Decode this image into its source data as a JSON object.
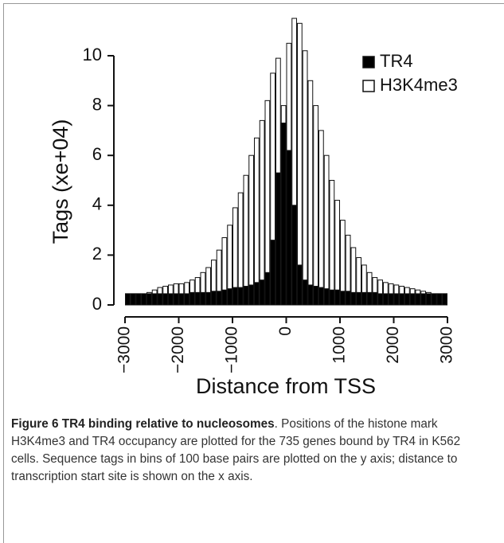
{
  "chart_data": {
    "type": "histogram",
    "y_label": "Tags (xe+04)",
    "x_label": "Distance from TSS",
    "bins": [
      -3000,
      -2900,
      -2800,
      -2700,
      -2600,
      -2500,
      -2400,
      -2300,
      -2200,
      -2100,
      -2000,
      -1900,
      -1800,
      -1700,
      -1600,
      -1500,
      -1400,
      -1300,
      -1200,
      -1100,
      -1000,
      -900,
      -800,
      -700,
      -600,
      -500,
      -400,
      -300,
      -200,
      -100,
      0,
      100,
      200,
      300,
      400,
      500,
      600,
      700,
      800,
      900,
      1000,
      1100,
      1200,
      1300,
      1400,
      1500,
      1600,
      1700,
      1800,
      1900,
      2000,
      2100,
      2200,
      2300,
      2400,
      2500,
      2600,
      2700,
      2800,
      2900,
      3000
    ],
    "series": [
      {
        "name": "H3K4me3",
        "color": "#ffffff",
        "values": [
          0.45,
          0.45,
          0.45,
          0.45,
          0.5,
          0.6,
          0.7,
          0.75,
          0.8,
          0.85,
          0.85,
          0.9,
          1.0,
          1.1,
          1.3,
          1.5,
          1.8,
          2.2,
          2.7,
          3.2,
          3.9,
          4.5,
          5.2,
          6.0,
          6.7,
          7.4,
          8.2,
          9.3,
          9.9,
          8.0,
          10.5,
          11.5,
          11.3,
          10.2,
          9.0,
          8.0,
          7.0,
          6.0,
          5.0,
          4.2,
          3.4,
          2.8,
          2.3,
          1.9,
          1.6,
          1.3,
          1.1,
          1.0,
          0.9,
          0.85,
          0.8,
          0.75,
          0.7,
          0.65,
          0.6,
          0.55,
          0.5,
          0.45,
          0.45,
          0.45
        ]
      },
      {
        "name": "TR4",
        "color": "#000000",
        "values": [
          0.45,
          0.45,
          0.45,
          0.45,
          0.45,
          0.45,
          0.45,
          0.45,
          0.45,
          0.45,
          0.45,
          0.45,
          0.5,
          0.5,
          0.5,
          0.5,
          0.55,
          0.55,
          0.6,
          0.65,
          0.7,
          0.7,
          0.75,
          0.8,
          0.9,
          1.0,
          1.3,
          2.6,
          5.3,
          7.3,
          6.2,
          4.0,
          1.6,
          1.0,
          0.8,
          0.75,
          0.7,
          0.65,
          0.6,
          0.6,
          0.55,
          0.55,
          0.5,
          0.5,
          0.5,
          0.5,
          0.5,
          0.45,
          0.45,
          0.45,
          0.45,
          0.45,
          0.45,
          0.45,
          0.45,
          0.45,
          0.45,
          0.45,
          0.45,
          0.45
        ]
      }
    ],
    "xlim": [
      -3000,
      3000
    ],
    "xticks": [
      {
        "value": -3000,
        "label": "−3000"
      },
      {
        "value": -2000,
        "label": "−2000"
      },
      {
        "value": -1000,
        "label": "−1000"
      },
      0,
      1000,
      2000,
      3000
    ],
    "ylim": [
      0,
      11.6
    ],
    "yticks": [
      0,
      2,
      4,
      6,
      8,
      10
    ],
    "legend": "upper right"
  },
  "caption": {
    "title": "Figure 6 TR4 binding relative to nucleosomes",
    "text": ". Positions of the histone mark H3K4me3 and TR4 occupancy are plotted for the 735 genes bound by TR4 in K562 cells. Sequence tags in bins of 100 base pairs are plotted on the y axis; distance to transcription start site is shown on the x axis."
  }
}
